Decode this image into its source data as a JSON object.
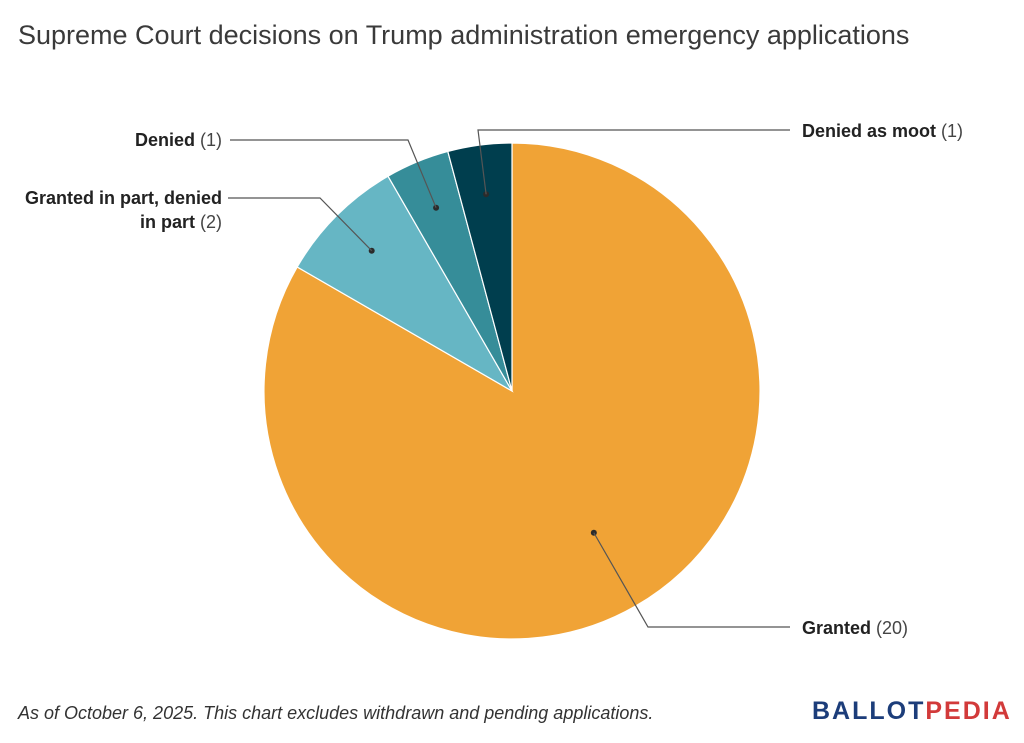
{
  "title": "Supreme Court decisions on Trump administration emergency applications",
  "footnote": "As of October 6, 2025. This chart excludes withdrawn and pending applications.",
  "logo": {
    "part1": "BALLOT",
    "part2": "PEDIA",
    "color1": "#1c3d7a",
    "color2": "#d23a3a"
  },
  "chart_data": {
    "type": "pie",
    "title": "Supreme Court decisions on Trump administration emergency applications",
    "start_angle_deg": 0,
    "direction": "clockwise",
    "slices": [
      {
        "label": "Granted",
        "value": 20,
        "value_text": "(20)",
        "color": "#f0a336"
      },
      {
        "label": "Granted in part, denied in part",
        "label_lines": [
          "Granted in part, denied",
          "in part"
        ],
        "value": 2,
        "value_text": "(2)",
        "color": "#66b6c4"
      },
      {
        "label": "Denied",
        "value": 1,
        "value_text": "(1)",
        "color": "#368d99"
      },
      {
        "label": "Denied as moot",
        "value": 1,
        "value_text": "(1)",
        "color": "#003e4e"
      }
    ]
  }
}
